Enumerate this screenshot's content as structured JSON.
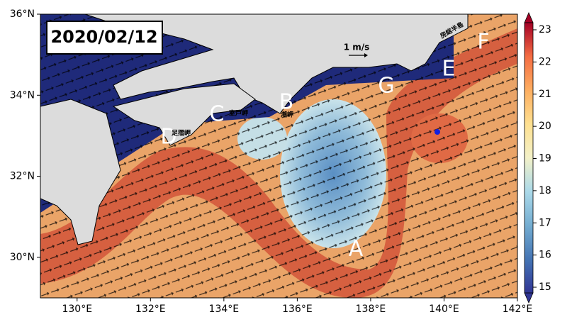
{
  "map": {
    "title": "2020/02/12",
    "xlim": [
      129,
      142
    ],
    "ylim": [
      29,
      36
    ],
    "xticks": [
      {
        "value": 130,
        "label": "130°E"
      },
      {
        "value": 132,
        "label": "132°E"
      },
      {
        "value": 134,
        "label": "134°E"
      },
      {
        "value": 136,
        "label": "136°E"
      },
      {
        "value": 138,
        "label": "138°E"
      },
      {
        "value": 140,
        "label": "140°E"
      },
      {
        "value": 142,
        "label": "142°E"
      }
    ],
    "yticks": [
      {
        "value": 30,
        "label": "30°N"
      },
      {
        "value": 32,
        "label": "32°N"
      },
      {
        "value": 34,
        "label": "34°N"
      },
      {
        "value": 36,
        "label": "36°N"
      }
    ],
    "colorbar": {
      "lim": [
        15,
        23
      ],
      "ticks": [
        15,
        16,
        17,
        18,
        19,
        20,
        21,
        22,
        23
      ]
    },
    "scale_label": "1 m/s",
    "letters": [
      "A",
      "B",
      "C",
      "D",
      "E",
      "F",
      "G"
    ],
    "places": [
      "室戸岬",
      "潮岬",
      "足摺岬",
      "房総半島"
    ]
  }
}
